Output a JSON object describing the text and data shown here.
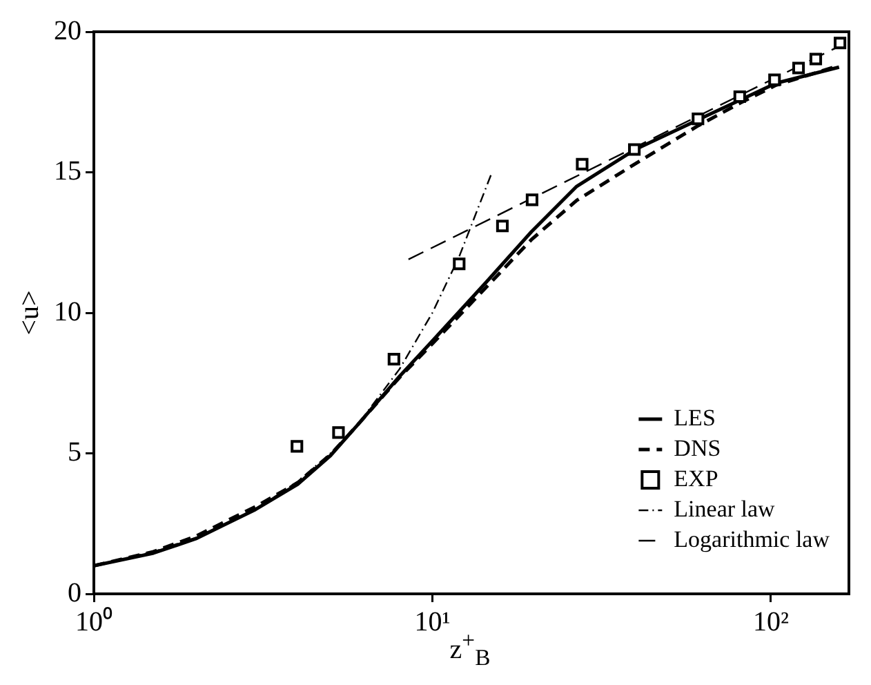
{
  "chart_data": {
    "type": "line",
    "xlabel": "z$^{+}$$_{B}$",
    "ylabel": "<u>",
    "log": "x",
    "xlim": [
      1,
      170
    ],
    "xticks": [
      {
        "value": 1,
        "label": "10⁰"
      },
      {
        "value": 10,
        "label": "10¹"
      },
      {
        "value": 100,
        "label": "10²"
      }
    ],
    "ylim": [
      0,
      20
    ],
    "yticks": [
      0,
      5,
      10,
      15,
      20
    ],
    "grid": false,
    "legend": "bottom right",
    "series": [
      {
        "name": "LES",
        "type": "line",
        "color": "#000000",
        "line_style": "solid",
        "marker": "none",
        "x": [
          1,
          1.5,
          2,
          3,
          4,
          5,
          6,
          8,
          10,
          14.4,
          19.6,
          26.7,
          39.7,
          61,
          81,
          103.5,
          159
        ],
        "values": [
          1.0,
          1.45,
          1.96,
          3.0,
          3.9,
          4.92,
          6.0,
          7.74,
          9.0,
          11.08,
          12.88,
          14.5,
          15.81,
          16.87,
          17.57,
          18.17,
          18.74
        ]
      },
      {
        "name": "DNS",
        "type": "line",
        "color": "#000000",
        "line_style": "dashed",
        "marker": "none",
        "x": [
          1,
          1.5,
          2,
          3,
          4,
          5,
          6,
          8,
          10,
          14.4,
          19.6,
          26.7,
          39.7,
          61,
          81,
          103.5,
          159
        ],
        "values": [
          1.0,
          1.5,
          2.05,
          3.1,
          3.95,
          4.95,
          6.0,
          7.7,
          8.9,
          10.9,
          12.6,
          14.0,
          15.3,
          16.66,
          17.46,
          18.1,
          18.8
        ]
      },
      {
        "name": "EXP",
        "type": "scatter",
        "color": "#000000",
        "marker": "square",
        "x": [
          3.98,
          5.28,
          7.7,
          12.0,
          16.1,
          19.7,
          27.7,
          39.5,
          60.9,
          80.9,
          102.5,
          120.7,
          135.7,
          160
        ],
        "values": [
          5.25,
          5.74,
          8.35,
          11.74,
          13.09,
          14.02,
          15.29,
          15.81,
          16.9,
          17.69,
          18.29,
          18.71,
          19.03,
          19.6
        ]
      },
      {
        "name": "Linear law",
        "type": "line",
        "color": "#000000",
        "line_style": "dashdot",
        "marker": "none",
        "x": [
          1,
          1.5,
          2,
          3,
          4,
          5,
          6,
          8,
          10,
          12,
          15
        ],
        "values": [
          1,
          1.5,
          2,
          3,
          4,
          5,
          6,
          8,
          10,
          12,
          15
        ]
      },
      {
        "name": "Logarithmic law",
        "type": "line",
        "color": "#000000",
        "line_style": "longdash",
        "marker": "none",
        "x": [
          8.5,
          160
        ],
        "values": [
          11.9,
          19.5
        ]
      }
    ]
  }
}
